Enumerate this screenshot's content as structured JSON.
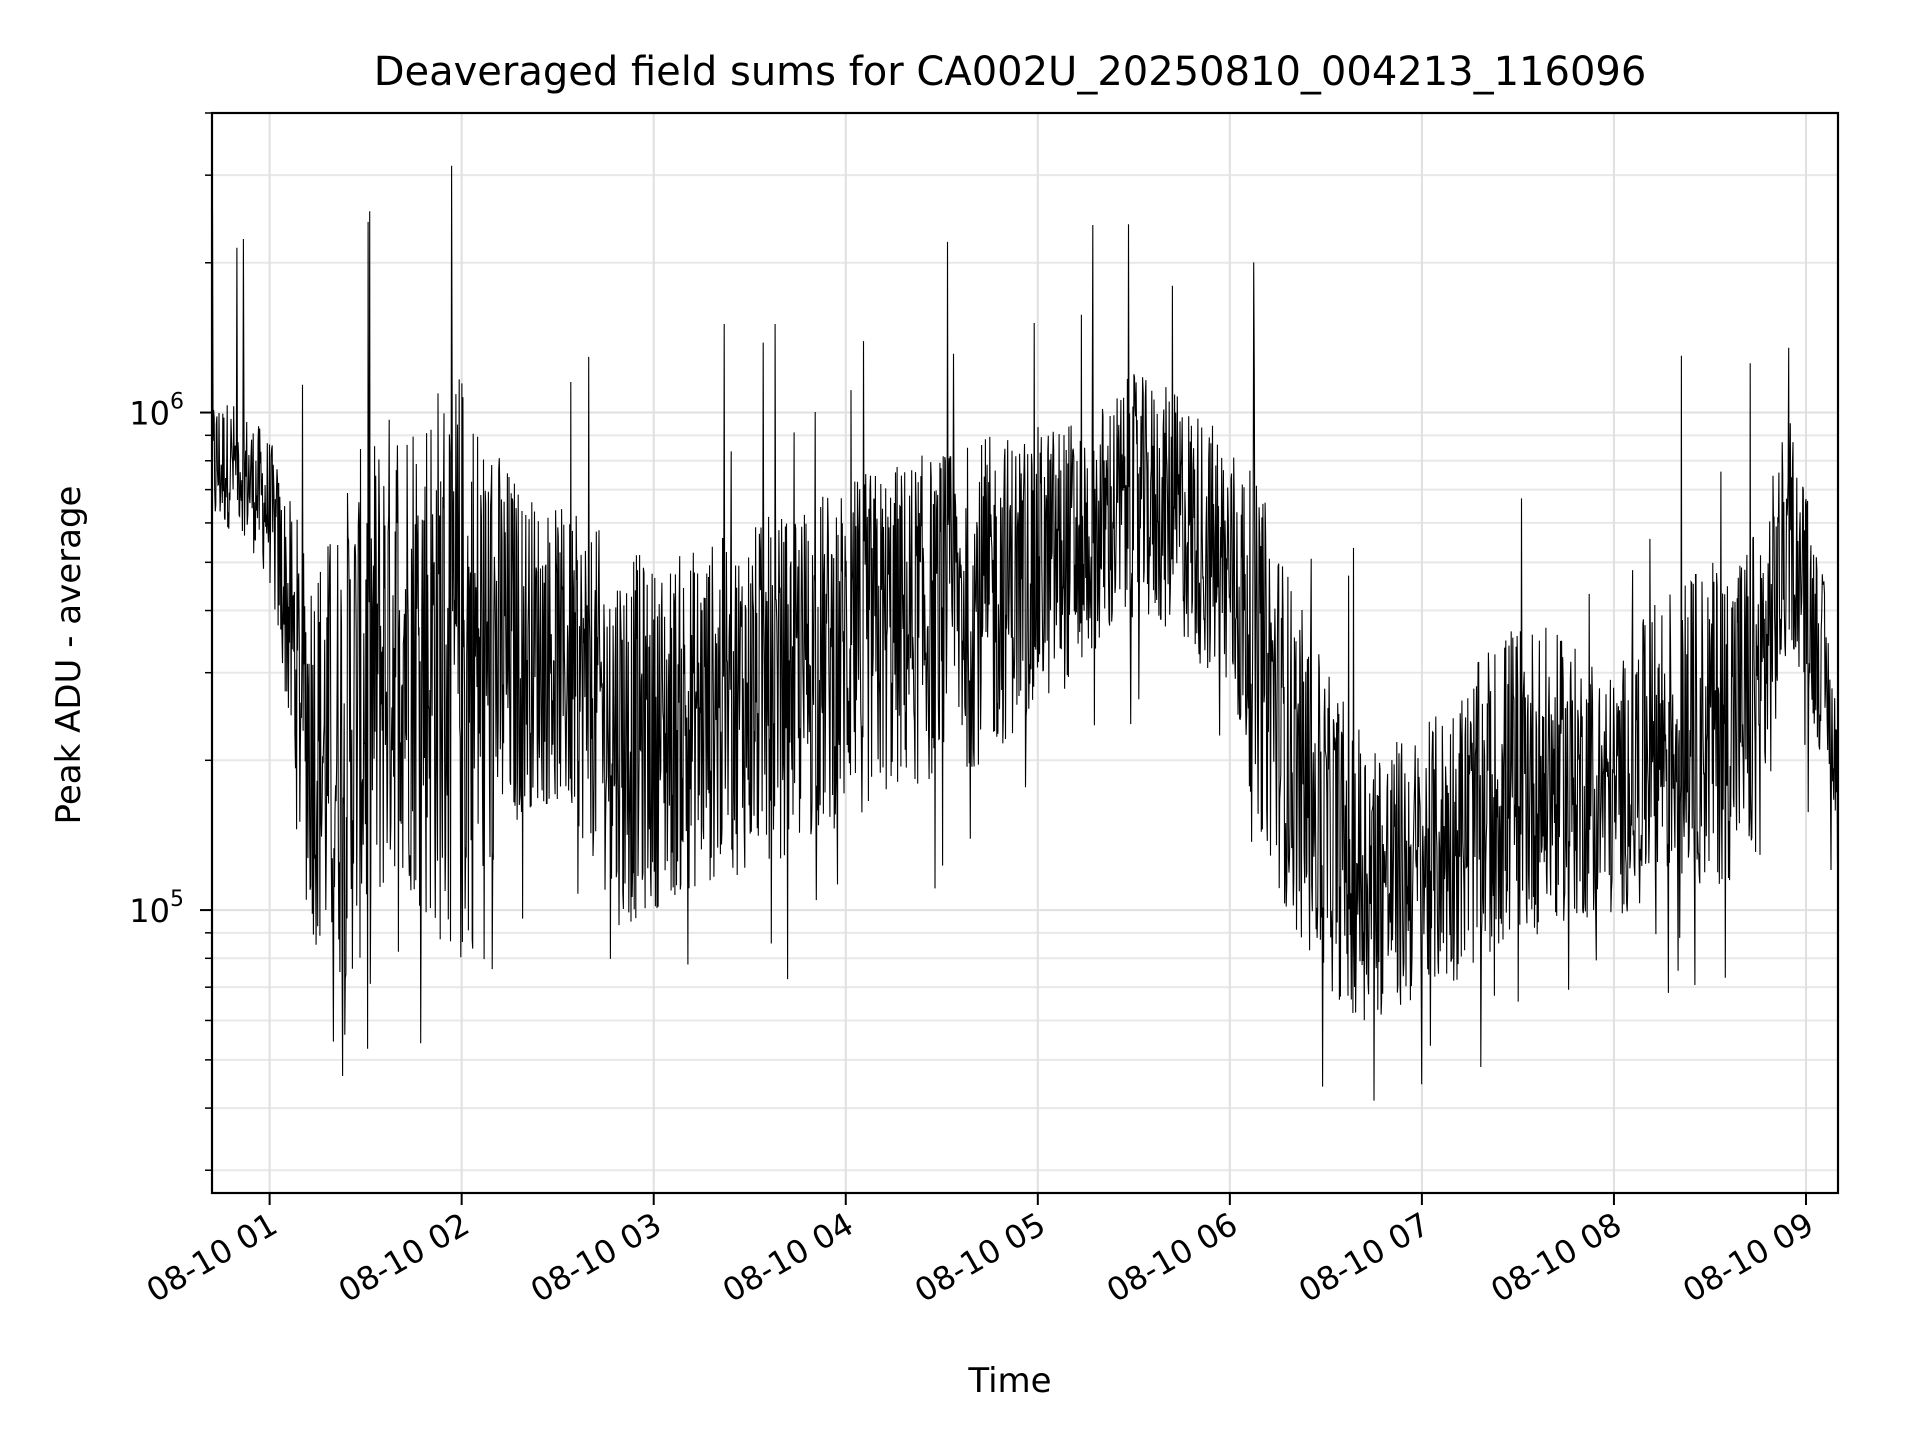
{
  "chart_data": {
    "type": "line",
    "title": "Deaveraged field sums for CA002U_20250810_004213_116096",
    "xlabel": "Time",
    "ylabel": "Peak ADU - average",
    "yscale": "log",
    "xlim": [
      "2025-08-10 00:42",
      "2025-08-10 09:10"
    ],
    "ylim": [
      27000,
      4000000
    ],
    "grid": true,
    "line_color": "#000000",
    "x_ticks": [
      "08-10 01",
      "08-10 02",
      "08-10 03",
      "08-10 04",
      "08-10 05",
      "08-10 06",
      "08-10 07",
      "08-10 08",
      "08-10 09"
    ],
    "y_ticks": [
      {
        "base": "10",
        "exp": "5"
      },
      {
        "base": "10",
        "exp": "6"
      }
    ],
    "series": [
      {
        "x": [
          "2025-08-10 00:42",
          "2025-08-10 00:50",
          "2025-08-10 01:00",
          "2025-08-10 01:05",
          "2025-08-10 01:10",
          "2025-08-10 01:15",
          "2025-08-10 01:20",
          "2025-08-10 01:25",
          "2025-08-10 01:30",
          "2025-08-10 01:40",
          "2025-08-10 01:50",
          "2025-08-10 02:00",
          "2025-08-10 02:10",
          "2025-08-10 02:20",
          "2025-08-10 02:30",
          "2025-08-10 02:40",
          "2025-08-10 02:50",
          "2025-08-10 03:00",
          "2025-08-10 03:15",
          "2025-08-10 03:30",
          "2025-08-10 03:45",
          "2025-08-10 04:00",
          "2025-08-10 04:15",
          "2025-08-10 04:30",
          "2025-08-10 04:45",
          "2025-08-10 05:00",
          "2025-08-10 05:15",
          "2025-08-10 05:30",
          "2025-08-10 05:45",
          "2025-08-10 06:00",
          "2025-08-10 06:10",
          "2025-08-10 06:20",
          "2025-08-10 06:30",
          "2025-08-10 06:40",
          "2025-08-10 06:50",
          "2025-08-10 07:00",
          "2025-08-10 07:15",
          "2025-08-10 07:30",
          "2025-08-10 07:45",
          "2025-08-10 08:00",
          "2025-08-10 08:15",
          "2025-08-10 08:30",
          "2025-08-10 08:45",
          "2025-08-10 08:55",
          "2025-08-10 09:05",
          "2025-08-10 09:10"
        ],
        "lo": [
          550000,
          600000,
          450000,
          260000,
          110000,
          80000,
          70000,
          70000,
          80000,
          120000,
          90000,
          70000,
          110000,
          160000,
          160000,
          130000,
          90000,
          100000,
          110000,
          120000,
          130000,
          150000,
          170000,
          180000,
          200000,
          250000,
          300000,
          380000,
          350000,
          250000,
          140000,
          90000,
          70000,
          60000,
          60000,
          65000,
          75000,
          85000,
          95000,
          95000,
          110000,
          110000,
          120000,
          350000,
          200000,
          150000
        ],
        "hi": [
          1100000,
          1050000,
          900000,
          700000,
          600000,
          550000,
          600000,
          750000,
          900000,
          1100000,
          1200000,
          1300000,
          900000,
          700000,
          650000,
          600000,
          550000,
          500000,
          550000,
          600000,
          650000,
          750000,
          800000,
          850000,
          900000,
          950000,
          1000000,
          1200000,
          1100000,
          900000,
          700000,
          450000,
          300000,
          250000,
          220000,
          230000,
          300000,
          400000,
          350000,
          300000,
          450000,
          500000,
          600000,
          1000000,
          500000,
          250000
        ]
      }
    ]
  }
}
